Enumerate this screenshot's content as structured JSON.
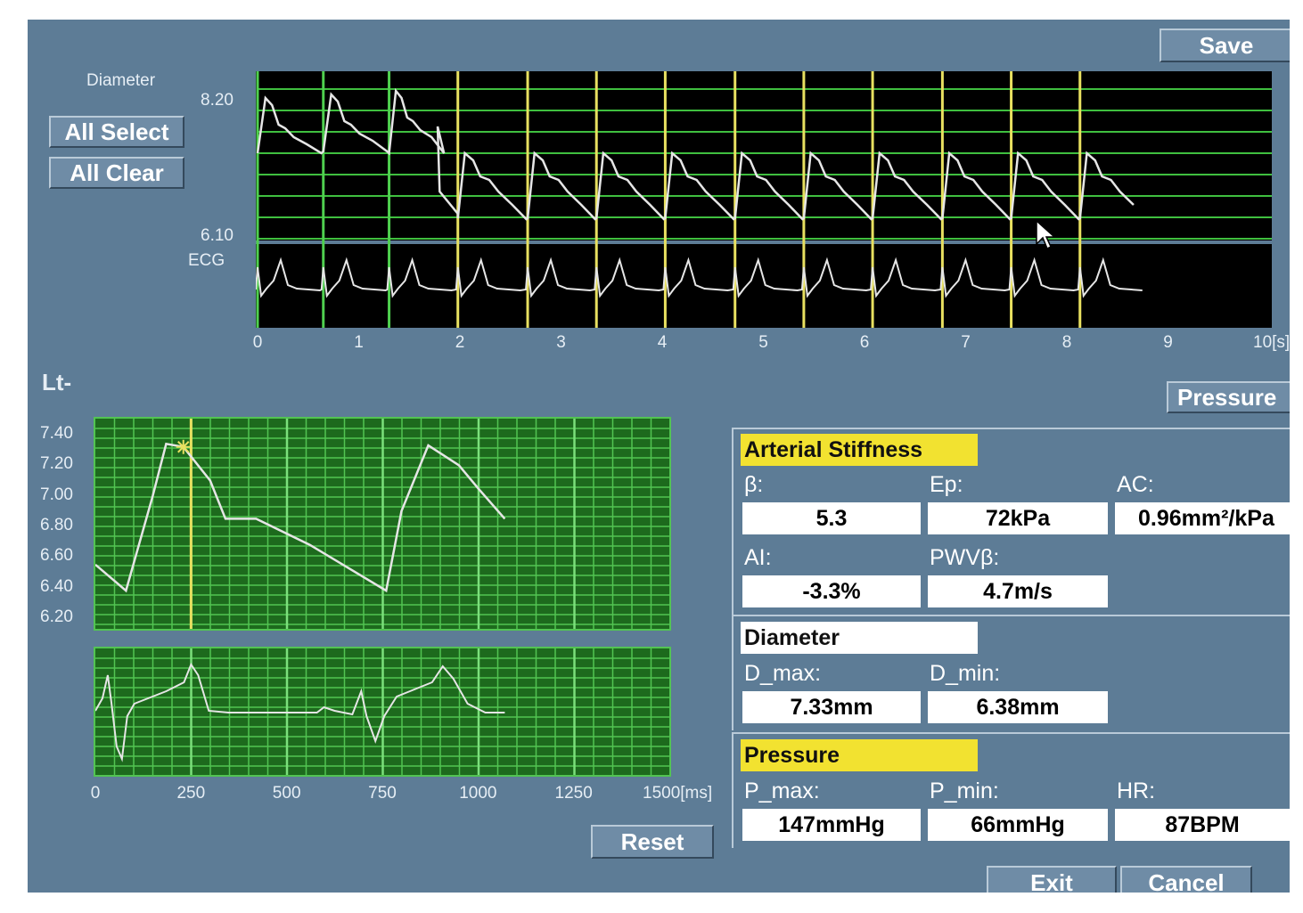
{
  "toolbar": {
    "save_label": "Save",
    "pressure_label": "Pressure",
    "reset_label": "Reset",
    "exit_label": "Exit",
    "cancel_label": "Cancel"
  },
  "selection": {
    "all_select_label": "All Select",
    "all_clear_label": "All Clear"
  },
  "top_plot": {
    "diameter_label": "Diameter",
    "diameter_max": "8.20",
    "diameter_min": "6.10",
    "ecg_label": "ECG",
    "x_ticks": [
      "0",
      "1",
      "2",
      "3",
      "4",
      "5",
      "6",
      "7",
      "8",
      "9",
      "10[s]"
    ]
  },
  "side_label": "Lt-",
  "zoom_plot": {
    "y_ticks": [
      "7.40",
      "7.20",
      "7.00",
      "6.80",
      "6.60",
      "6.40",
      "6.20"
    ],
    "x_ticks": [
      "0",
      "250",
      "500",
      "750",
      "1000",
      "1250",
      "1500[ms]"
    ]
  },
  "arterial_stiffness": {
    "title": "Arterial Stiffness",
    "beta_label": "β:",
    "beta_value": "5.3",
    "ep_label": "Ep:",
    "ep_value": "72kPa",
    "ac_label": "AC:",
    "ac_value": "0.96mm²/kPa",
    "ai_label": "AI:",
    "ai_value": "-3.3%",
    "pwv_label": "PWVβ:",
    "pwv_value": "4.7m/s"
  },
  "diameter": {
    "title": "Diameter",
    "dmax_label": "D_max:",
    "dmax_value": "7.33mm",
    "dmin_label": "D_min:",
    "dmin_value": "6.38mm"
  },
  "pressure": {
    "title": "Pressure",
    "pmax_label": "P_max:",
    "pmax_value": "147mmHg",
    "pmin_label": "P_min:",
    "pmin_value": "66mmHg",
    "hr_label": "HR:",
    "hr_value": "87BPM"
  },
  "colors": {
    "background": "#5d7c96",
    "grid_green": "#52c452",
    "marker_yellow": "#e8e060",
    "header_yellow": "#f2e230"
  },
  "chart_data": [
    {
      "type": "line",
      "series": [
        {
          "values": []
        }
      ],
      "x_range": [
        0,
        10
      ],
      "y_range": [
        6.1,
        8.2
      ],
      "beat_markers_s": [
        0,
        0.65,
        1.3,
        1.98,
        2.67,
        3.35,
        4.03,
        4.72,
        5.4,
        6.08,
        6.77,
        7.45,
        8.13
      ]
    },
    {
      "type": "line",
      "series": [
        {
          "values": [
            [
              0,
              6.55
            ],
            [
              80,
              6.38
            ],
            [
              150,
              7.0
            ],
            [
              185,
              7.34
            ],
            [
              230,
              7.32
            ],
            [
              300,
              7.1
            ],
            [
              340,
              6.85
            ],
            [
              420,
              6.85
            ],
            [
              560,
              6.68
            ],
            [
              760,
              6.38
            ],
            [
              800,
              6.9
            ],
            [
              870,
              7.33
            ],
            [
              950,
              7.2
            ],
            [
              1000,
              7.05
            ],
            [
              1070,
              6.85
            ]
          ]
        }
      ],
      "x_range": [
        0,
        1500
      ],
      "y_range": [
        6.2,
        7.4
      ],
      "marker_ms": 250
    }
  ]
}
